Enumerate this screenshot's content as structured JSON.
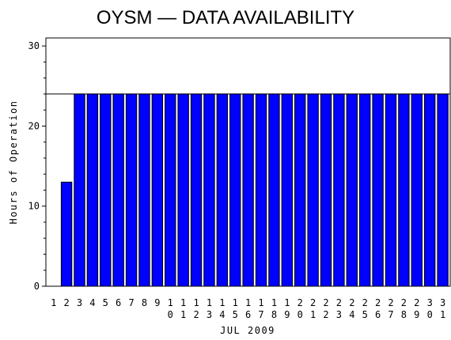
{
  "chart_data": {
    "type": "bar",
    "title": "OYSM — DATA AVAILABILITY",
    "xlabel": "JUL 2009",
    "ylabel": "Hours of Operation",
    "ylim": [
      0,
      31
    ],
    "yticks": [
      0,
      10,
      20,
      30
    ],
    "reference_line": 24,
    "grid": false,
    "legend": "none",
    "categories": [
      "1",
      "2",
      "3",
      "4",
      "5",
      "6",
      "7",
      "8",
      "9",
      "10",
      "11",
      "12",
      "13",
      "14",
      "15",
      "16",
      "17",
      "18",
      "19",
      "20",
      "21",
      "22",
      "23",
      "24",
      "25",
      "26",
      "27",
      "28",
      "29",
      "30",
      "31"
    ],
    "values": [
      0,
      13,
      24,
      24,
      24,
      24,
      24,
      24,
      24,
      24,
      24,
      24,
      24,
      24,
      24,
      24,
      24,
      24,
      24,
      24,
      24,
      24,
      24,
      24,
      24,
      24,
      24,
      24,
      24,
      24,
      24
    ],
    "bar_color": "#0000ff"
  }
}
